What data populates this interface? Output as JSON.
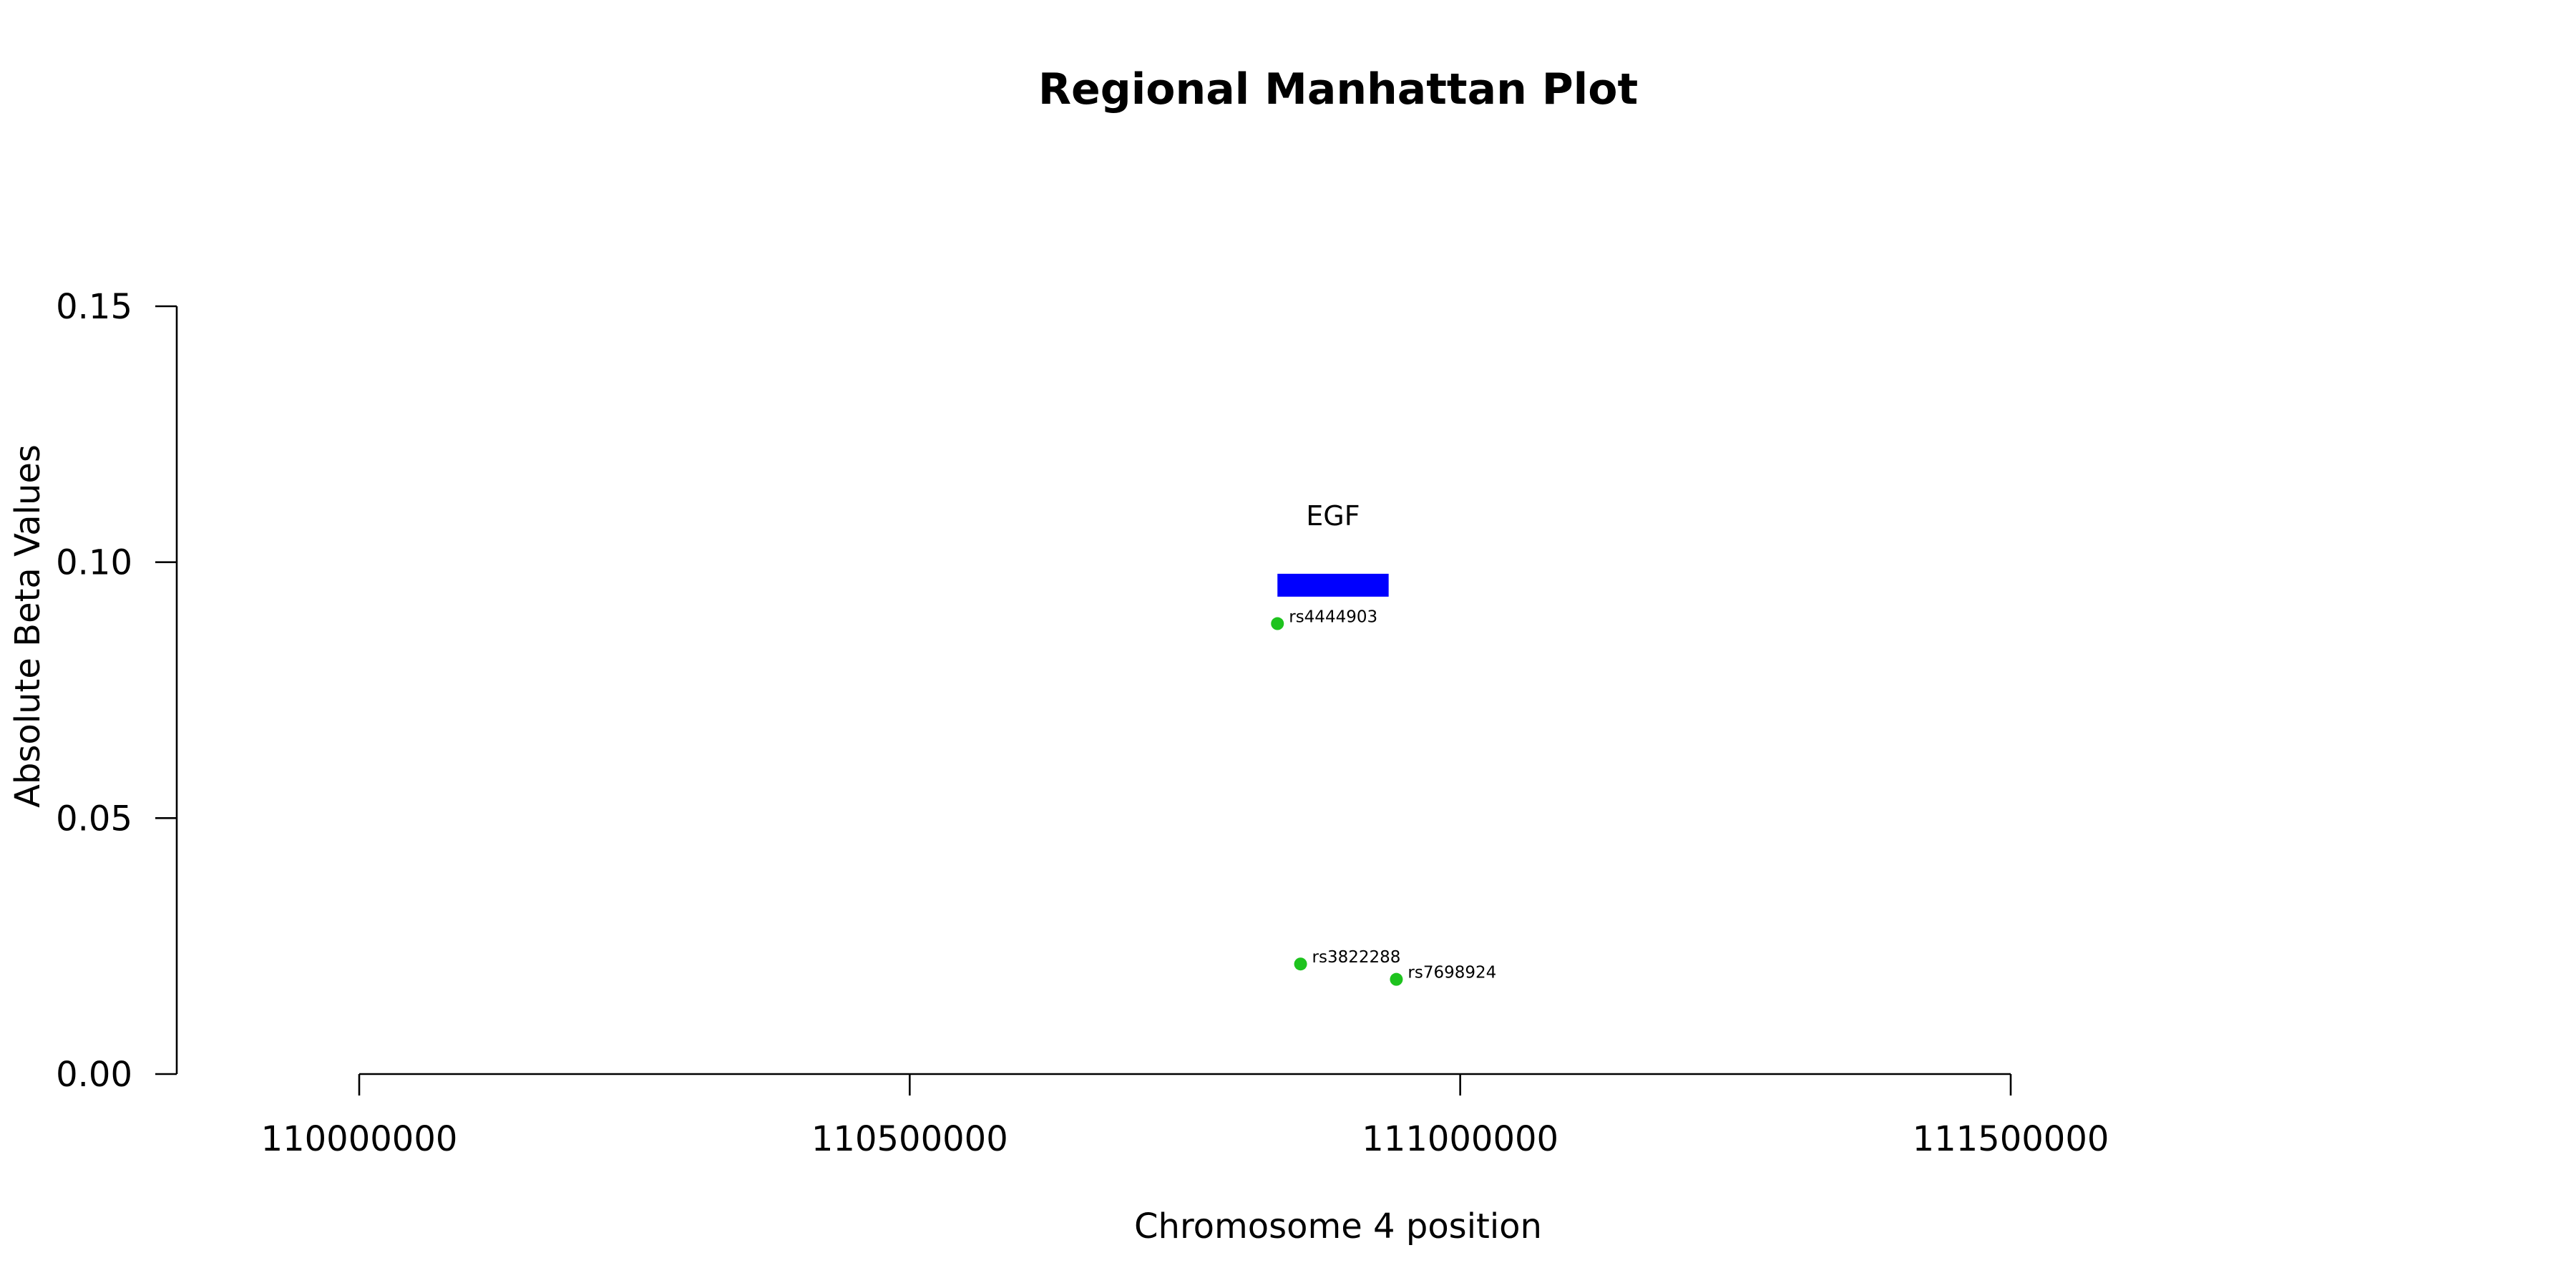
{
  "chart_data": {
    "type": "scatter",
    "title": "Regional Manhattan Plot",
    "xlabel": "Chromosome 4 position",
    "ylabel": "Absolute Beta Values",
    "xlim": [
      110000000,
      111500000
    ],
    "ylim": [
      0,
      0.15
    ],
    "x_ticks": [
      110000000,
      110500000,
      111000000,
      111500000
    ],
    "x_tick_labels": [
      "110000000",
      "110500000",
      "111000000",
      "111500000"
    ],
    "y_ticks": [
      0,
      0.05,
      0.1,
      0.15
    ],
    "y_tick_labels": [
      "0.00",
      "0.05",
      "0.10",
      "0.15"
    ],
    "grid": false,
    "point_color": "#1ec31e",
    "points": [
      {
        "label": "rs4444903",
        "x": 110834000,
        "y": 0.088
      },
      {
        "label": "rs3822288",
        "x": 110855000,
        "y": 0.0215
      },
      {
        "label": "rs7698924",
        "x": 110942000,
        "y": 0.0185
      }
    ],
    "genes": [
      {
        "name": "EGF",
        "start": 110834000,
        "end": 110935000,
        "y": 0.0955,
        "color": "#0000ff"
      }
    ]
  }
}
